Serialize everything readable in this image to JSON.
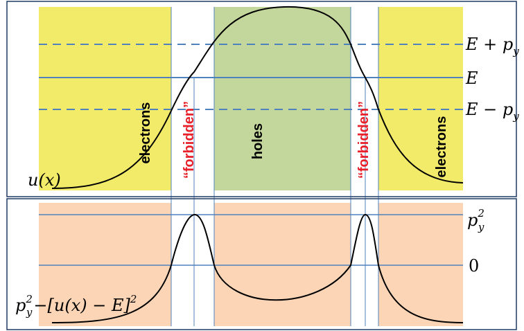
{
  "upper_panel": {
    "curve_label": "u(x)",
    "right_labels": {
      "upper": "E + p",
      "upper_sub": "y",
      "middle": "E",
      "lower": "E − p",
      "lower_sub": "y"
    },
    "regions": [
      {
        "label": "electrons",
        "color": "#000000"
      },
      {
        "label": "“forbidden”",
        "color": "#e8202a"
      },
      {
        "label": "holes",
        "color": "#000000"
      },
      {
        "label": "“forbidden”",
        "color": "#e8202a"
      },
      {
        "label": "electrons",
        "color": "#000000"
      }
    ]
  },
  "lower_panel": {
    "expression": {
      "p": "p",
      "sup": "2",
      "sub": "y",
      "mid": "−[u(x) − E]",
      "sup2": "2"
    },
    "right_labels": {
      "top": "p",
      "top_sup": "2",
      "top_sub": "y",
      "zero": "0"
    }
  },
  "colors": {
    "electron_region": "#f2ea69",
    "hole_region": "#c3d69b",
    "lower_fill": "#fbd5b5",
    "guide_line": "#4f81bd",
    "frame": "#1f3864"
  }
}
